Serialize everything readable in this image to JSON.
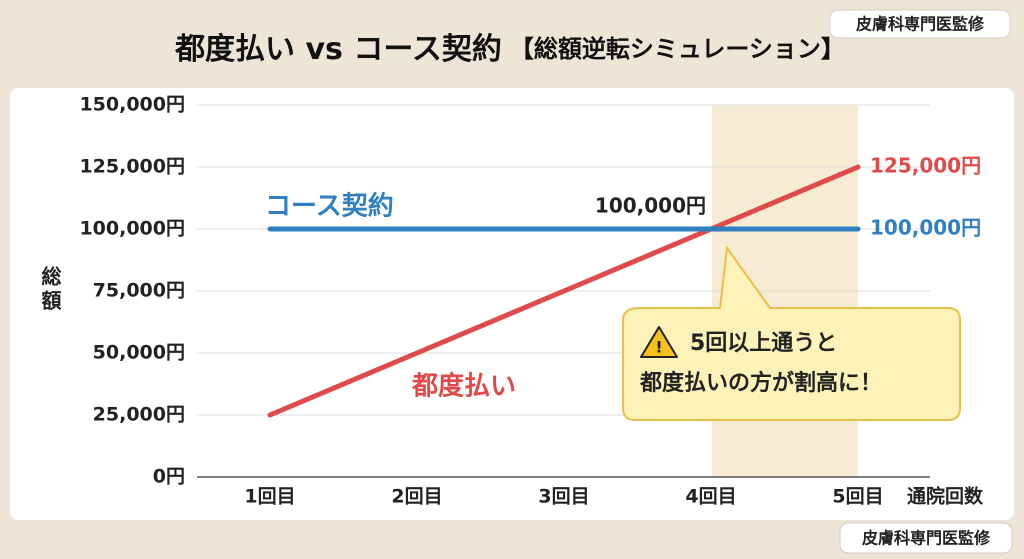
{
  "badges": [
    "皮膚科専門医監修",
    "皮膚科専門医監修"
  ],
  "chart_data": {
    "type": "line",
    "title": "都度払い vs コース契約",
    "subtitle": "【総額逆転シミュレーション】",
    "x_label": "通院回数",
    "y_label": "総額",
    "categories": [
      "1回目",
      "2回目",
      "3回目",
      "4回目",
      "5回目"
    ],
    "series": [
      {
        "name": "都度払い",
        "color": "#e04a4a",
        "values": [
          25000,
          50000,
          75000,
          100000,
          125000
        ],
        "value_labels": [
          null,
          null,
          null,
          null,
          "125,000円"
        ]
      },
      {
        "name": "コース契約",
        "color": "#2f7fc1",
        "values": [
          100000,
          100000,
          100000,
          100000,
          100000
        ],
        "value_labels": [
          null,
          null,
          null,
          "100,000円",
          "100,000円"
        ]
      }
    ],
    "ylim": [
      0,
      150000
    ],
    "yticks": [
      {
        "value": 0,
        "label": "0円"
      },
      {
        "value": 25000,
        "label": "25,000円"
      },
      {
        "value": 50000,
        "label": "50,000円"
      },
      {
        "value": 75000,
        "label": "75,000円"
      },
      {
        "value": 100000,
        "label": "100,000円"
      },
      {
        "value": 125000,
        "label": "125,000円"
      },
      {
        "value": 150000,
        "label": "150,000円"
      }
    ],
    "grid": true,
    "annotation": [
      "5回以上通うと",
      "都度払いの方が割高に！"
    ]
  }
}
